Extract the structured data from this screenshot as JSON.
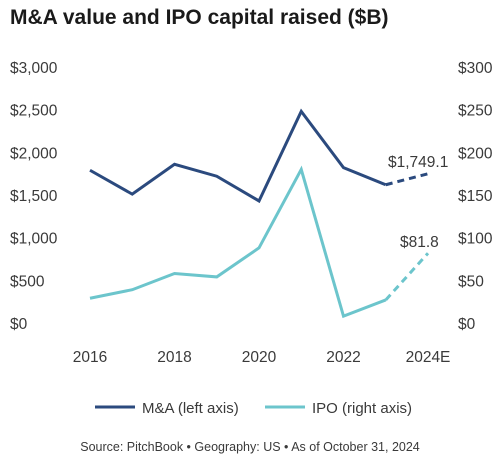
{
  "title": "M&A value and IPO capital raised ($B)",
  "source": "Source: PitchBook • Geography: US • As of October 31, 2024",
  "colors": {
    "ma": "#2b4a7e",
    "ipo": "#6cc5cc",
    "text": "#3a3a3a"
  },
  "chart_data": {
    "type": "line",
    "title": "M&A value and IPO capital raised ($B)",
    "x": [
      "2016",
      "2017",
      "2018",
      "2019",
      "2020",
      "2021",
      "2022",
      "2023",
      "2024E"
    ],
    "x_tick_labels": [
      "2016",
      "2018",
      "2020",
      "2022",
      "2024E"
    ],
    "y_left": {
      "ylim": [
        0,
        3000
      ],
      "ticks": [
        "$0",
        "$500",
        "$1,000",
        "$1,500",
        "$2,000",
        "$2,500",
        "$3,000"
      ],
      "tick_values": [
        0,
        500,
        1000,
        1500,
        2000,
        2500,
        3000
      ]
    },
    "y_right": {
      "ylim": [
        0,
        300
      ],
      "ticks": [
        "$0",
        "$50",
        "$100",
        "$150",
        "$200",
        "$250",
        "$300"
      ],
      "tick_values": [
        0,
        50,
        100,
        150,
        200,
        250,
        300
      ]
    },
    "series": [
      {
        "name": "M&A (left axis)",
        "axis": "left",
        "values": [
          1790,
          1510,
          1860,
          1720,
          1430,
          2480,
          1820,
          1620,
          1749.1
        ],
        "estimated_from_index": 7,
        "label": "$1,749.1"
      },
      {
        "name": "IPO (right axis)",
        "axis": "right",
        "values": [
          29,
          39,
          58,
          54,
          88,
          180,
          8,
          27,
          81.8
        ],
        "estimated_from_index": 7,
        "label": "$81.8"
      }
    ],
    "grid": false,
    "legend": "bottom"
  }
}
